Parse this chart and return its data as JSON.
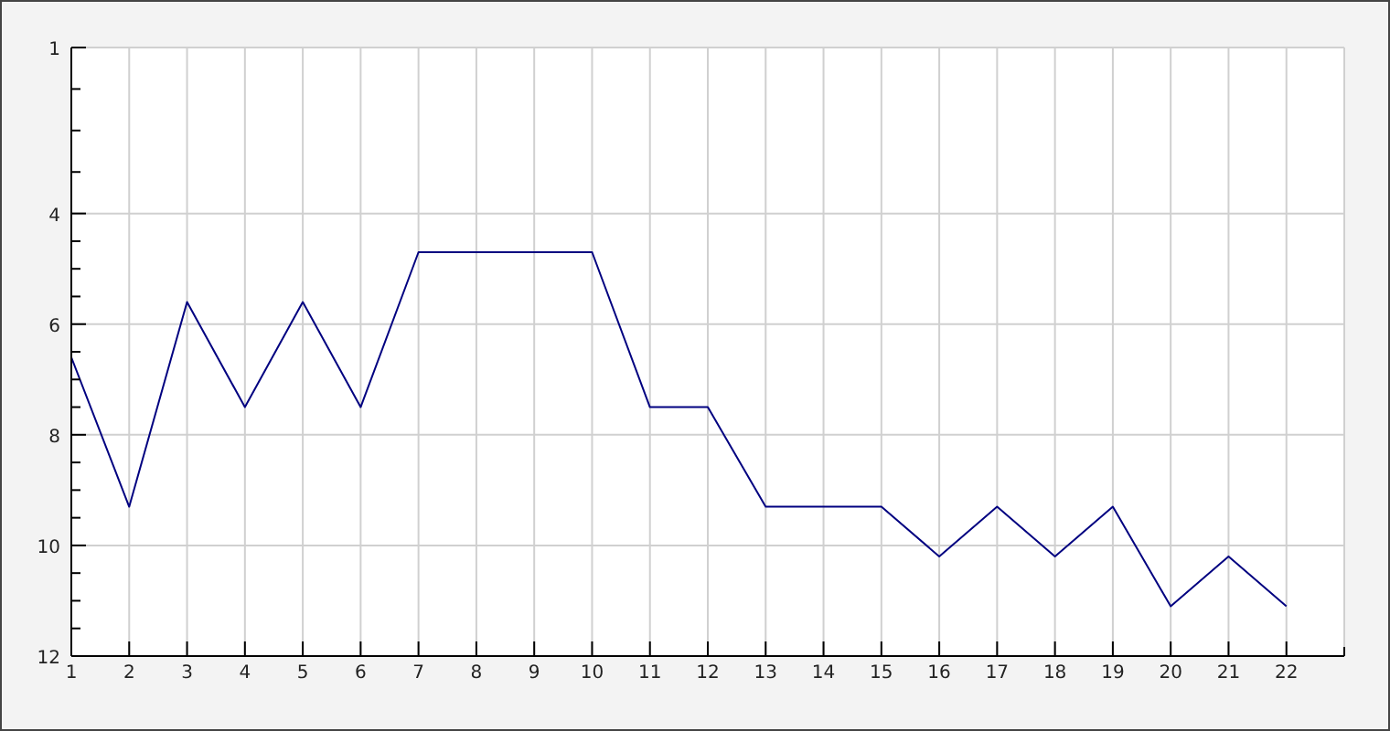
{
  "chart_data": {
    "type": "line",
    "x": [
      1,
      2,
      3,
      4,
      5,
      6,
      7,
      8,
      9,
      10,
      11,
      12,
      13,
      14,
      15,
      16,
      17,
      18,
      19,
      20,
      21,
      22
    ],
    "series": [
      {
        "color": "#000080",
        "values": [
          6.6,
          9.3,
          5.6,
          7.5,
          5.6,
          7.5,
          4.7,
          4.7,
          4.7,
          4.7,
          7.5,
          7.5,
          9.3,
          9.3,
          9.3,
          10.2,
          9.3,
          10.2,
          9.3,
          11.1,
          10.2,
          11.1
        ]
      }
    ],
    "xlim": [
      1,
      23
    ],
    "xticks": [
      1,
      2,
      3,
      4,
      5,
      6,
      7,
      8,
      9,
      10,
      11,
      12,
      13,
      14,
      15,
      16,
      17,
      18,
      19,
      20,
      21,
      22,
      {
        "value": 23,
        "label": null
      }
    ],
    "ylim": [
      12,
      1
    ],
    "yticks": [
      1,
      {
        "value": 1.75,
        "label": null
      },
      {
        "value": 2.5,
        "label": null
      },
      {
        "value": 3.25,
        "label": null
      },
      4,
      {
        "value": 4.5,
        "label": null
      },
      {
        "value": 5,
        "label": null
      },
      {
        "value": 5.5,
        "label": null
      },
      6,
      {
        "value": 6.5,
        "label": null
      },
      {
        "value": 7,
        "label": null
      },
      {
        "value": 7.5,
        "label": null
      },
      8,
      {
        "value": 8.5,
        "label": null
      },
      {
        "value": 9,
        "label": null
      },
      {
        "value": 9.5,
        "label": null
      },
      10,
      {
        "value": 10.5,
        "label": null
      },
      {
        "value": 11,
        "label": null
      },
      {
        "value": 11.5,
        "label": null
      },
      12
    ],
    "grid": true,
    "marker": "none",
    "line_style": "solid"
  }
}
